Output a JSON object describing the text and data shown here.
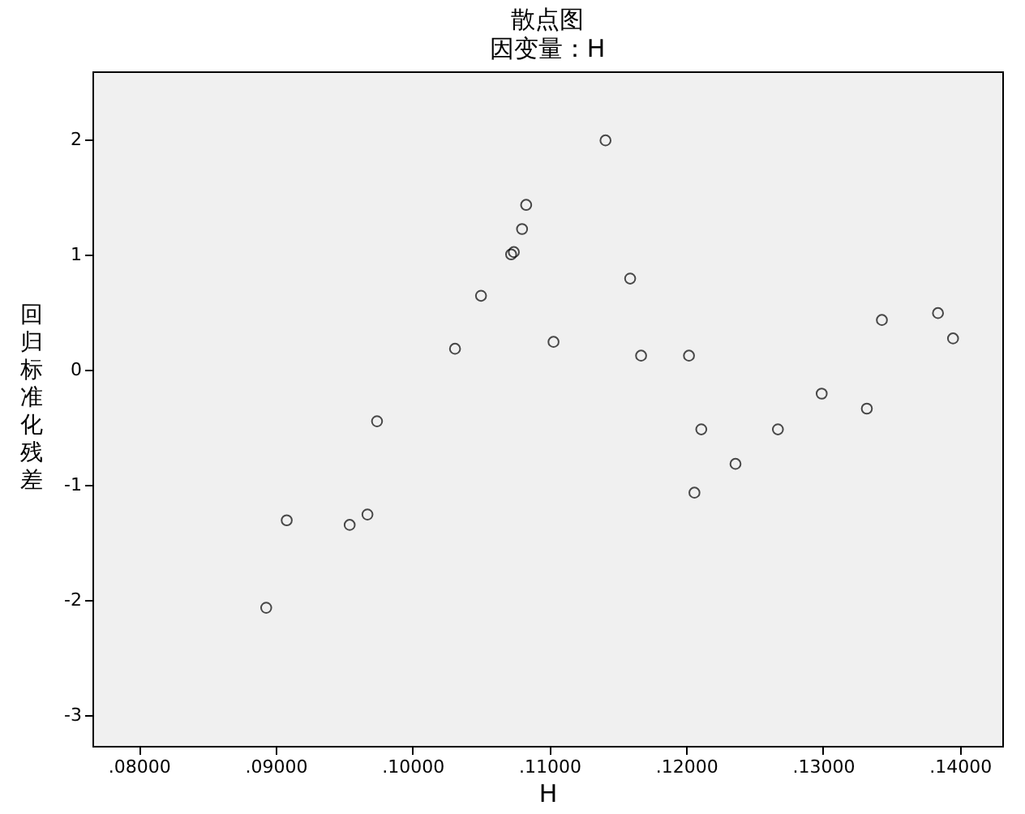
{
  "chart_data": {
    "type": "scatter",
    "title": "散点图",
    "subtitle": "因变量：H",
    "xlabel": "H",
    "ylabel": "回归标准化残差",
    "x": [
      0.0893,
      0.0908,
      0.0954,
      0.0967,
      0.0974,
      0.1031,
      0.105,
      0.1072,
      0.1074,
      0.108,
      0.1083,
      0.1103,
      0.1141,
      0.1159,
      0.1167,
      0.1202,
      0.1206,
      0.1211,
      0.1236,
      0.1267,
      0.1299,
      0.1332,
      0.1343,
      0.1384,
      0.1395
    ],
    "series": [
      {
        "color": "#000000",
        "values": [
          -2.07,
          -1.31,
          -1.35,
          -1.26,
          -0.45,
          0.18,
          0.64,
          1.0,
          1.02,
          1.22,
          1.43,
          0.24,
          1.99,
          0.79,
          0.12,
          0.12,
          -1.07,
          -0.52,
          -0.82,
          -0.52,
          -0.21,
          -0.34,
          0.43,
          0.49,
          0.27
        ]
      }
    ],
    "xlim": [
      0.0766,
      0.1431
    ],
    "ylim": [
      -3.27,
      2.59
    ],
    "xticks": [
      {
        "value": 0.08,
        "label": ".08000"
      },
      {
        "value": 0.09,
        "label": ".09000"
      },
      {
        "value": 0.1,
        "label": ".10000"
      },
      {
        "value": 0.11,
        "label": ".11000"
      },
      {
        "value": 0.12,
        "label": ".12000"
      },
      {
        "value": 0.13,
        "label": ".13000"
      },
      {
        "value": 0.14,
        "label": ".14000"
      }
    ],
    "yticks": [
      -3,
      -2,
      -1,
      0,
      1,
      2
    ],
    "grid": false,
    "legend": false,
    "marker": "circle"
  }
}
